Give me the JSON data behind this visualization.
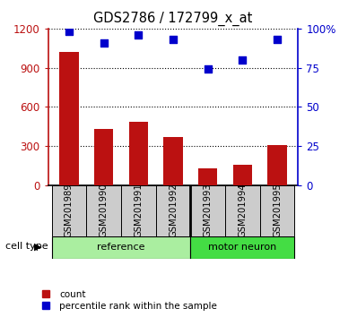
{
  "title": "GDS2786 / 172799_x_at",
  "samples": [
    "GSM201989",
    "GSM201990",
    "GSM201991",
    "GSM201992",
    "GSM201993",
    "GSM201994",
    "GSM201995"
  ],
  "counts": [
    1020,
    430,
    490,
    370,
    130,
    160,
    310
  ],
  "percentiles": [
    98,
    91,
    96,
    93,
    74,
    80,
    93
  ],
  "left_ylim": [
    0,
    1200
  ],
  "right_ylim": [
    0,
    100
  ],
  "left_yticks": [
    0,
    300,
    600,
    900,
    1200
  ],
  "left_yticklabels": [
    "0",
    "300",
    "600",
    "900",
    "1200"
  ],
  "right_yticks": [
    0,
    25,
    50,
    75,
    100
  ],
  "right_yticklabels": [
    "0",
    "25",
    "50",
    "75",
    "100%"
  ],
  "bar_color": "#bb1111",
  "dot_color": "#0000cc",
  "ref_bg": "#cccccc",
  "ref_cell_color": "#aaeea0",
  "motor_cell_color": "#44dd44",
  "ref_label": "reference",
  "motor_label": "motor neuron",
  "cell_type_label": "cell type",
  "legend_count": "count",
  "legend_percentile": "percentile rank within the sample",
  "n_reference": 4,
  "n_motor": 3
}
